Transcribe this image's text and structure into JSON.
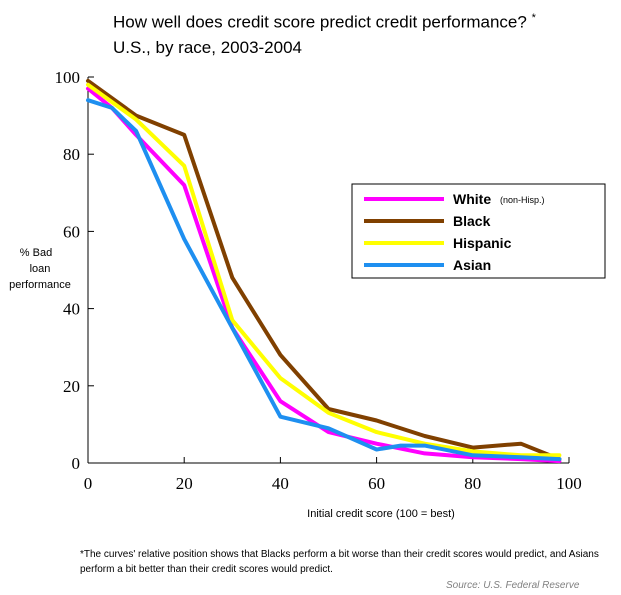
{
  "chart_data": {
    "type": "line",
    "title": "How well does credit score predict credit performance?",
    "title_marker": "*",
    "subtitle": "U.S., by race, 2003-2004",
    "xlabel": "Initial credit score (100 = best)",
    "ylabel_lines": [
      "% Bad",
      "loan",
      "performance"
    ],
    "xlim": [
      0,
      100
    ],
    "ylim": [
      0,
      100
    ],
    "x_ticks": [
      "0",
      "20",
      "40",
      "60",
      "80",
      "100"
    ],
    "y_ticks": [
      "0",
      "20",
      "40",
      "60",
      "80",
      "100"
    ],
    "grid": false,
    "legend_placement": "right",
    "series": [
      {
        "name": "White",
        "qualifier": "(non-Hisp.)",
        "color": "#ff00ff",
        "x": [
          0,
          5,
          10,
          20,
          30,
          40,
          50,
          60,
          70,
          80,
          90,
          98
        ],
        "y": [
          97,
          92,
          85,
          72,
          35,
          16,
          8,
          5,
          2.5,
          1.5,
          1,
          0.5
        ]
      },
      {
        "name": "Black",
        "color": "#804000",
        "x": [
          0,
          10,
          20,
          30,
          40,
          50,
          60,
          70,
          80,
          90,
          98
        ],
        "y": [
          99,
          90,
          85,
          48,
          28,
          14,
          11,
          7,
          4,
          5,
          1
        ]
      },
      {
        "name": "Hispanic",
        "color": "#ffff00",
        "x": [
          0,
          10,
          20,
          30,
          40,
          50,
          60,
          70,
          80,
          90,
          98
        ],
        "y": [
          98,
          89,
          77,
          37,
          22,
          13,
          8,
          5,
          3,
          2,
          2
        ]
      },
      {
        "name": "Asian",
        "color": "#1e8ff0",
        "x": [
          0,
          5,
          10,
          20,
          30,
          40,
          50,
          60,
          65,
          70,
          80,
          90,
          98
        ],
        "y": [
          94,
          92,
          86,
          58,
          35,
          12,
          9,
          3.5,
          4.5,
          4.5,
          2,
          1.5,
          1
        ]
      }
    ],
    "footnote": "*The curves' relative position shows that Blacks perform a bit worse than their credit scores would predict, and Asians perform a bit better than their credit scores would predict.",
    "source": "Source: U.S. Federal Reserve"
  }
}
